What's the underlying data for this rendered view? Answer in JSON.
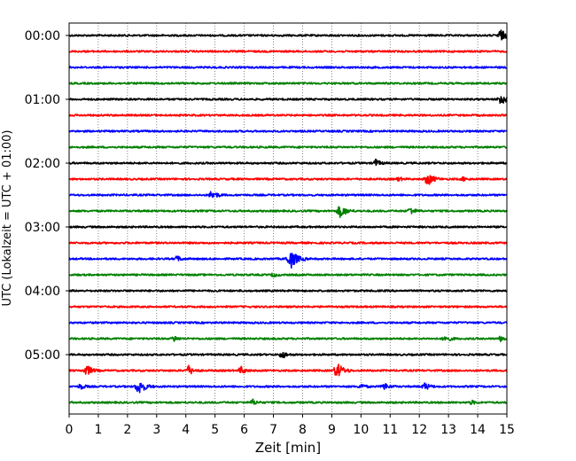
{
  "chart_data": {
    "type": "line",
    "title": "",
    "xlabel": "Zeit  [min]",
    "ylabel": "UTC (Lokalzeit = UTC + 01:00)",
    "xlim": [
      0,
      15
    ],
    "x_ticks": [
      "0",
      "1",
      "2",
      "3",
      "4",
      "5",
      "6",
      "7",
      "8",
      "9",
      "10",
      "11",
      "12",
      "13",
      "14",
      "15"
    ],
    "y_ticks": [
      "00:00",
      "01:00",
      "02:00",
      "03:00",
      "04:00",
      "05:00"
    ],
    "grid": "vertical-dotted",
    "trace_colors": [
      "#000000",
      "#ff0000",
      "#0000ff",
      "#008000"
    ],
    "traces": [
      {
        "start": "00:00",
        "events": [
          {
            "t": 14.8,
            "amp": 6
          }
        ]
      },
      {
        "start": "00:15",
        "events": []
      },
      {
        "start": "00:30",
        "events": []
      },
      {
        "start": "00:45",
        "events": []
      },
      {
        "start": "01:00",
        "events": [
          {
            "t": 14.8,
            "amp": 6
          }
        ]
      },
      {
        "start": "01:15",
        "events": []
      },
      {
        "start": "01:30",
        "events": []
      },
      {
        "start": "01:45",
        "events": []
      },
      {
        "start": "02:00",
        "events": [
          {
            "t": 10.5,
            "amp": 4
          }
        ]
      },
      {
        "start": "02:15",
        "events": [
          {
            "t": 11.3,
            "amp": 2
          },
          {
            "t": 12.3,
            "amp": 7
          },
          {
            "t": 13.5,
            "amp": 2
          }
        ]
      },
      {
        "start": "02:30",
        "events": [
          {
            "t": 4.9,
            "amp": 5
          }
        ]
      },
      {
        "start": "02:45",
        "events": [
          {
            "t": 9.3,
            "amp": 7
          },
          {
            "t": 11.7,
            "amp": 4
          }
        ]
      },
      {
        "start": "03:00",
        "events": []
      },
      {
        "start": "03:15",
        "events": []
      },
      {
        "start": "03:30",
        "events": [
          {
            "t": 3.7,
            "amp": 3
          },
          {
            "t": 7.6,
            "amp": 10
          }
        ]
      },
      {
        "start": "03:45",
        "events": [
          {
            "t": 7.0,
            "amp": 2
          }
        ]
      },
      {
        "start": "04:00",
        "events": []
      },
      {
        "start": "04:15",
        "events": []
      },
      {
        "start": "04:30",
        "events": []
      },
      {
        "start": "04:45",
        "events": [
          {
            "t": 3.6,
            "amp": 3
          },
          {
            "t": 12.9,
            "amp": 4
          },
          {
            "t": 14.8,
            "amp": 3
          }
        ]
      },
      {
        "start": "05:00",
        "events": [
          {
            "t": 7.3,
            "amp": 4
          }
        ]
      },
      {
        "start": "05:15",
        "events": [
          {
            "t": 0.6,
            "amp": 6
          },
          {
            "t": 4.1,
            "amp": 5
          },
          {
            "t": 5.9,
            "amp": 4
          },
          {
            "t": 9.2,
            "amp": 8
          }
        ]
      },
      {
        "start": "05:30",
        "events": [
          {
            "t": 0.4,
            "amp": 3
          },
          {
            "t": 2.4,
            "amp": 8
          },
          {
            "t": 10.0,
            "amp": 3
          },
          {
            "t": 10.8,
            "amp": 4
          },
          {
            "t": 12.2,
            "amp": 4
          }
        ]
      },
      {
        "start": "05:45",
        "events": [
          {
            "t": 6.3,
            "amp": 3
          },
          {
            "t": 13.8,
            "amp": 2
          }
        ]
      }
    ]
  }
}
